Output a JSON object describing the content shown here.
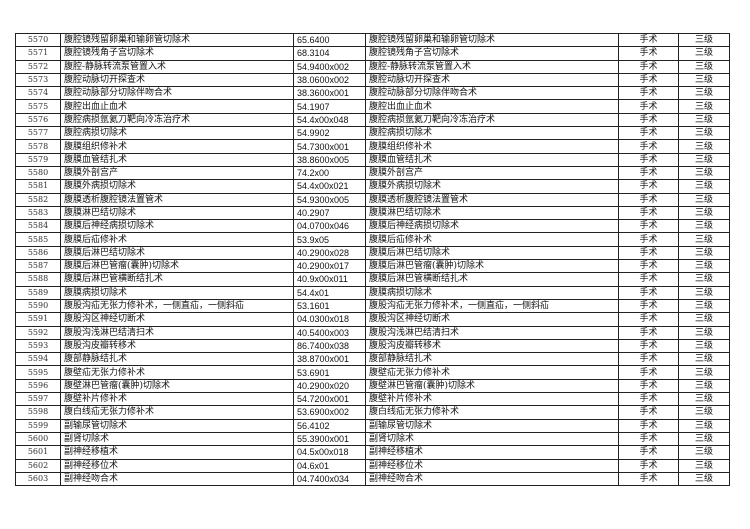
{
  "rows": [
    {
      "no": "5570",
      "name": "腹腔镜残留卵巢和输卵管切除术",
      "code": "65.6400",
      "name2": "腹腔镜残留卵巢和输卵管切除术",
      "type": "手术",
      "level": "三级"
    },
    {
      "no": "5571",
      "name": "腹腔镜残角子宫切除术",
      "code": "68.3104",
      "name2": "腹腔镜残角子宫切除术",
      "type": "手术",
      "level": "三级"
    },
    {
      "no": "5572",
      "name": "腹腔-静脉转流泵管置入术",
      "code": "54.9400x002",
      "name2": "腹腔-静脉转流泵管置入术",
      "type": "手术",
      "level": "三级"
    },
    {
      "no": "5573",
      "name": "腹腔动脉切开探查术",
      "code": "38.0600x002",
      "name2": "腹腔动脉切开探查术",
      "type": "手术",
      "level": "三级"
    },
    {
      "no": "5574",
      "name": "腹腔动脉部分切除伴吻合术",
      "code": "38.3600x001",
      "name2": "腹腔动脉部分切除伴吻合术",
      "type": "手术",
      "level": "三级"
    },
    {
      "no": "5575",
      "name": "腹腔出血止血术",
      "code": "54.1907",
      "name2": "腹腔出血止血术",
      "type": "手术",
      "level": "三级"
    },
    {
      "no": "5576",
      "name": "腹腔病损氩氦刀靶向冷冻治疗术",
      "code": "54.4x00x048",
      "name2": "腹腔病损氩氦刀靶向冷冻治疗术",
      "type": "手术",
      "level": "三级"
    },
    {
      "no": "5577",
      "name": "腹腔病损切除术",
      "code": "54.9902",
      "name2": "腹腔病损切除术",
      "type": "手术",
      "level": "三级"
    },
    {
      "no": "5578",
      "name": "腹膜组织修补术",
      "code": "54.7300x001",
      "name2": "腹膜组织修补术",
      "type": "手术",
      "level": "三级"
    },
    {
      "no": "5579",
      "name": "腹膜血管结扎术",
      "code": "38.8600x005",
      "name2": "腹膜血管结扎术",
      "type": "手术",
      "level": "三级"
    },
    {
      "no": "5580",
      "name": "腹膜外剖宫产",
      "code": "74.2x00",
      "name2": "腹膜外剖宫产",
      "type": "手术",
      "level": "三级"
    },
    {
      "no": "5581",
      "name": "腹膜外病损切除术",
      "code": "54.4x00x021",
      "name2": "腹膜外病损切除术",
      "type": "手术",
      "level": "三级"
    },
    {
      "no": "5582",
      "name": "腹膜透析腹腔镜法置管术",
      "code": "54.9300x005",
      "name2": "腹膜透析腹腔镜法置管术",
      "type": "手术",
      "level": "三级"
    },
    {
      "no": "5583",
      "name": "腹膜淋巴结切除术",
      "code": "40.2907",
      "name2": "腹膜淋巴结切除术",
      "type": "手术",
      "level": "三级"
    },
    {
      "no": "5584",
      "name": "腹膜后神经病损切除术",
      "code": "04.0700x046",
      "name2": "腹膜后神经病损切除术",
      "type": "手术",
      "level": "三级"
    },
    {
      "no": "5585",
      "name": "腹膜后疝修补术",
      "code": "53.9x05",
      "name2": "腹膜后疝修补术",
      "type": "手术",
      "level": "三级"
    },
    {
      "no": "5586",
      "name": "腹膜后淋巴结切除术",
      "code": "40.2900x028",
      "name2": "腹膜后淋巴结切除术",
      "type": "手术",
      "level": "三级"
    },
    {
      "no": "5587",
      "name": "腹膜后淋巴管瘤(囊肿)切除术",
      "code": "40.2900x017",
      "name2": "腹膜后淋巴管瘤(囊肿)切除术",
      "type": "手术",
      "level": "三级"
    },
    {
      "no": "5588",
      "name": "腹膜后淋巴管横断结扎术",
      "code": "40.9x00x011",
      "name2": "腹膜后淋巴管横断结扎术",
      "type": "手术",
      "level": "三级"
    },
    {
      "no": "5589",
      "name": "腹膜病损切除术",
      "code": "54.4x01",
      "name2": "腹膜病损切除术",
      "type": "手术",
      "level": "三级"
    },
    {
      "no": "5590",
      "name": "腹股沟疝无张力修补术，一侧直疝，一侧斜疝",
      "code": "53.1601",
      "name2": "腹股沟疝无张力修补术，一侧直疝，一侧斜疝",
      "type": "手术",
      "level": "三级"
    },
    {
      "no": "5591",
      "name": "腹股沟区神经切断术",
      "code": "04.0300x018",
      "name2": "腹股沟区神经切断术",
      "type": "手术",
      "level": "三级"
    },
    {
      "no": "5592",
      "name": "腹股沟浅淋巴结清扫术",
      "code": "40.5400x003",
      "name2": "腹股沟浅淋巴结清扫术",
      "type": "手术",
      "level": "三级"
    },
    {
      "no": "5593",
      "name": "腹股沟皮瓣转移术",
      "code": "86.7400x038",
      "name2": "腹股沟皮瓣转移术",
      "type": "手术",
      "level": "三级"
    },
    {
      "no": "5594",
      "name": "腹部静脉结扎术",
      "code": "38.8700x001",
      "name2": "腹部静脉结扎术",
      "type": "手术",
      "level": "三级"
    },
    {
      "no": "5595",
      "name": "腹壁疝无张力修补术",
      "code": "53.6901",
      "name2": "腹壁疝无张力修补术",
      "type": "手术",
      "level": "三级"
    },
    {
      "no": "5596",
      "name": "腹壁淋巴管瘤(囊肿)切除术",
      "code": "40.2900x020",
      "name2": "腹壁淋巴管瘤(囊肿)切除术",
      "type": "手术",
      "level": "三级"
    },
    {
      "no": "5597",
      "name": "腹壁补片修补术",
      "code": "54.7200x001",
      "name2": "腹壁补片修补术",
      "type": "手术",
      "level": "三级"
    },
    {
      "no": "5598",
      "name": "腹白线疝无张力修补术",
      "code": "53.6900x002",
      "name2": "腹白线疝无张力修补术",
      "type": "手术",
      "level": "三级"
    },
    {
      "no": "5599",
      "name": "副输尿管切除术",
      "code": "56.4102",
      "name2": "副输尿管切除术",
      "type": "手术",
      "level": "三级"
    },
    {
      "no": "5600",
      "name": "副肾切除术",
      "code": "55.3900x001",
      "name2": "副肾切除术",
      "type": "手术",
      "level": "三级"
    },
    {
      "no": "5601",
      "name": "副神经移植术",
      "code": "04.5x00x018",
      "name2": "副神经移植术",
      "type": "手术",
      "level": "三级"
    },
    {
      "no": "5602",
      "name": "副神经移位术",
      "code": "04.6x01",
      "name2": "副神经移位术",
      "type": "手术",
      "level": "三级"
    },
    {
      "no": "5603",
      "name": "副神经吻合术",
      "code": "04.7400x034",
      "name2": "副神经吻合术",
      "type": "手术",
      "level": "三级"
    }
  ]
}
